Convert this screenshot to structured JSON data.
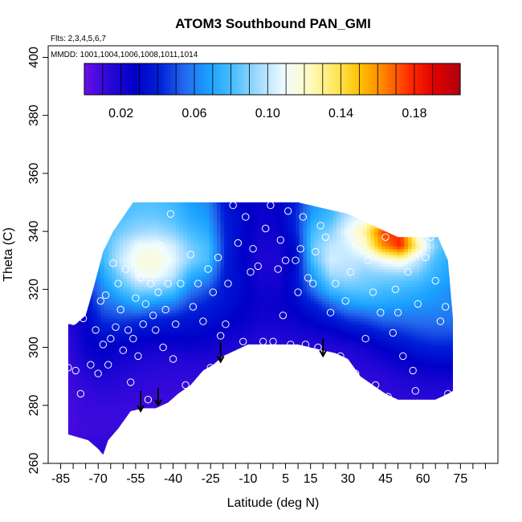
{
  "chart_data": {
    "type": "heatmap",
    "title": "ATOM3 Southbound PAN_GMI",
    "notes": [
      "Flts: 2,3,4,5,6,7",
      "MMDD: 1001,1004,1006,1008,1011,1014"
    ],
    "xlabel": "Latitude (deg N)",
    "ylabel": "Theta (C)",
    "xlim": [
      -90,
      90
    ],
    "ylim": [
      260,
      404
    ],
    "x_ticks": [
      -85,
      -80,
      -75,
      -70,
      -65,
      -60,
      -55,
      -50,
      -45,
      -40,
      -35,
      -30,
      -25,
      -20,
      -15,
      -10,
      -5,
      0,
      5,
      10,
      15,
      20,
      25,
      30,
      35,
      40,
      45,
      50,
      55,
      60,
      65,
      70,
      75,
      80,
      85
    ],
    "x_tick_labels": [
      "-85",
      "-70",
      "-55",
      "-40",
      "-25",
      "-10",
      "5",
      "15",
      "30",
      "45",
      "60",
      "75"
    ],
    "x_tick_label_values": [
      -85,
      -70,
      -55,
      -40,
      -25,
      -10,
      5,
      15,
      30,
      45,
      60,
      75
    ],
    "y_ticks": [
      260,
      280,
      300,
      320,
      340,
      360,
      380,
      400
    ],
    "y_tick_labels": [
      "260",
      "280",
      "300",
      "320",
      "340",
      "360",
      "380",
      "400"
    ],
    "colorbar": {
      "range": [
        0.0,
        0.205
      ],
      "tick_values": [
        0.02,
        0.06,
        0.1,
        0.14,
        0.18
      ],
      "tick_labels": [
        "0.02",
        "0.06",
        "0.10",
        "0.14",
        "0.18"
      ],
      "colors": [
        "#6a0fe6",
        "#2a08d8",
        "#0000c8",
        "#0020d8",
        "#2468ec",
        "#1aa2ff",
        "#4ec0ff",
        "#a8dcff",
        "#f0fcff",
        "#fffac0",
        "#ffe860",
        "#ffc000",
        "#ff8000",
        "#ff2a00",
        "#e00000",
        "#b00010"
      ]
    },
    "field_grid": {
      "lats": [
        -82,
        -75,
        -68,
        -61,
        -54,
        -47,
        -40,
        -33,
        -26,
        -19,
        -12,
        -5,
        2,
        9,
        16,
        23,
        30,
        37,
        44,
        51,
        58,
        65,
        72
      ],
      "thetas": [
        265,
        270,
        275,
        280,
        285,
        290,
        295,
        300,
        305,
        310,
        315,
        320,
        325,
        330,
        335,
        340,
        345,
        350
      ],
      "values": [
        [
          0.01,
          0.008,
          0.007,
          0.008,
          0.009,
          0.01,
          0.01,
          0.012,
          0.014,
          0.016,
          0.015,
          0.016,
          0.018,
          0.02,
          0.022,
          0.024,
          0.025,
          0.026
        ],
        [
          0.012,
          0.01,
          0.01,
          0.011,
          0.012,
          0.015,
          0.02,
          0.024,
          0.026,
          0.028,
          0.034,
          0.04,
          0.046,
          0.052,
          0.055,
          0.056,
          0.056,
          0.057
        ],
        [
          0.014,
          0.011,
          0.01,
          0.011,
          0.014,
          0.019,
          0.024,
          0.028,
          0.035,
          0.045,
          0.054,
          0.062,
          0.07,
          0.078,
          0.08,
          0.078,
          0.076,
          0.075
        ],
        [
          0.014,
          0.011,
          0.01,
          0.011,
          0.013,
          0.016,
          0.02,
          0.026,
          0.036,
          0.048,
          0.062,
          0.078,
          0.09,
          0.102,
          0.096,
          0.088,
          0.082,
          0.08
        ],
        [
          0.014,
          0.011,
          0.01,
          0.01,
          0.012,
          0.014,
          0.018,
          0.024,
          0.032,
          0.046,
          0.07,
          0.09,
          0.11,
          0.116,
          0.11,
          0.094,
          0.086,
          0.082
        ],
        [
          0.014,
          0.011,
          0.01,
          0.01,
          0.011,
          0.013,
          0.016,
          0.022,
          0.03,
          0.042,
          0.064,
          0.09,
          0.112,
          0.118,
          0.112,
          0.096,
          0.086,
          0.082
        ],
        [
          0.014,
          0.012,
          0.011,
          0.01,
          0.011,
          0.013,
          0.016,
          0.022,
          0.03,
          0.04,
          0.06,
          0.082,
          0.1,
          0.108,
          0.104,
          0.09,
          0.082,
          0.078
        ],
        [
          0.016,
          0.014,
          0.012,
          0.011,
          0.011,
          0.013,
          0.016,
          0.024,
          0.03,
          0.036,
          0.046,
          0.06,
          0.075,
          0.09,
          0.088,
          0.08,
          0.072,
          0.068
        ],
        [
          0.018,
          0.016,
          0.014,
          0.012,
          0.012,
          0.013,
          0.016,
          0.022,
          0.028,
          0.034,
          0.04,
          0.05,
          0.065,
          0.08,
          0.08,
          0.072,
          0.066,
          0.062
        ],
        [
          0.018,
          0.016,
          0.014,
          0.013,
          0.012,
          0.013,
          0.015,
          0.018,
          0.024,
          0.03,
          0.034,
          0.036,
          0.038,
          0.04,
          0.042,
          0.04,
          0.038,
          0.036
        ],
        [
          0.018,
          0.016,
          0.014,
          0.013,
          0.012,
          0.012,
          0.013,
          0.016,
          0.022,
          0.026,
          0.028,
          0.03,
          0.03,
          0.028,
          0.028,
          0.03,
          0.03,
          0.028
        ],
        [
          0.018,
          0.016,
          0.014,
          0.013,
          0.012,
          0.012,
          0.013,
          0.015,
          0.018,
          0.022,
          0.024,
          0.022,
          0.02,
          0.018,
          0.02,
          0.022,
          0.024,
          0.024
        ],
        [
          0.018,
          0.016,
          0.014,
          0.013,
          0.012,
          0.012,
          0.013,
          0.015,
          0.018,
          0.022,
          0.024,
          0.022,
          0.02,
          0.018,
          0.02,
          0.024,
          0.026,
          0.026
        ],
        [
          0.018,
          0.016,
          0.014,
          0.013,
          0.012,
          0.012,
          0.013,
          0.015,
          0.02,
          0.024,
          0.03,
          0.034,
          0.034,
          0.03,
          0.032,
          0.04,
          0.042,
          0.04
        ],
        [
          0.018,
          0.016,
          0.014,
          0.013,
          0.012,
          0.012,
          0.013,
          0.015,
          0.022,
          0.03,
          0.04,
          0.056,
          0.068,
          0.08,
          0.086,
          0.08,
          0.07,
          0.064
        ],
        [
          0.018,
          0.016,
          0.014,
          0.013,
          0.012,
          0.012,
          0.013,
          0.016,
          0.024,
          0.036,
          0.054,
          0.078,
          0.094,
          0.104,
          0.1,
          0.09,
          0.08,
          0.074
        ],
        [
          0.018,
          0.016,
          0.014,
          0.013,
          0.012,
          0.012,
          0.014,
          0.018,
          0.03,
          0.046,
          0.066,
          0.084,
          0.096,
          0.1,
          0.104,
          0.11,
          0.1,
          0.09
        ],
        [
          0.018,
          0.016,
          0.014,
          0.013,
          0.012,
          0.012,
          0.016,
          0.022,
          0.034,
          0.05,
          0.07,
          0.084,
          0.09,
          0.1,
          0.12,
          0.13,
          0.11,
          0.1
        ],
        [
          0.018,
          0.016,
          0.014,
          0.013,
          0.012,
          0.014,
          0.02,
          0.028,
          0.04,
          0.056,
          0.07,
          0.08,
          0.09,
          0.11,
          0.16,
          0.175,
          0.13,
          0.11
        ],
        [
          0.018,
          0.016,
          0.014,
          0.013,
          0.014,
          0.018,
          0.024,
          0.032,
          0.044,
          0.056,
          0.068,
          0.078,
          0.09,
          0.118,
          0.18,
          0.178,
          0.12,
          0.1
        ],
        [
          0.018,
          0.016,
          0.014,
          0.013,
          0.016,
          0.02,
          0.028,
          0.038,
          0.048,
          0.058,
          0.066,
          0.074,
          0.086,
          0.1,
          0.128,
          0.11,
          0.095,
          0.09
        ],
        [
          0.018,
          0.016,
          0.014,
          0.013,
          0.016,
          0.022,
          0.03,
          0.04,
          0.05,
          0.058,
          0.064,
          0.068,
          0.074,
          0.08,
          0.09,
          0.085,
          0.082,
          0.08
        ],
        [
          0.018,
          0.016,
          0.014,
          0.013,
          0.016,
          0.022,
          0.03,
          0.04,
          0.05,
          0.058,
          0.062,
          0.064,
          0.068,
          0.07,
          0.072,
          0.072,
          0.07,
          0.068
        ]
      ]
    },
    "domain": {
      "lower_boundary": [
        [
          -82,
          270
        ],
        [
          -78,
          269
        ],
        [
          -74,
          268
        ],
        [
          -70,
          265
        ],
        [
          -68,
          263
        ],
        [
          -66,
          268
        ],
        [
          -62,
          272
        ],
        [
          -57,
          278
        ],
        [
          -52,
          279
        ],
        [
          -47,
          279
        ],
        [
          -42,
          281
        ],
        [
          -38,
          284
        ],
        [
          -33,
          287
        ],
        [
          -28,
          292
        ],
        [
          -24,
          294
        ],
        [
          -20,
          297
        ],
        [
          -15,
          299
        ],
        [
          -10,
          301
        ],
        [
          -5,
          301
        ],
        [
          0,
          301
        ],
        [
          5,
          301
        ],
        [
          10,
          301
        ],
        [
          15,
          300
        ],
        [
          20,
          299
        ],
        [
          25,
          298
        ],
        [
          30,
          296
        ],
        [
          35,
          290
        ],
        [
          40,
          287
        ],
        [
          45,
          284
        ],
        [
          50,
          282
        ],
        [
          55,
          282
        ],
        [
          60,
          282
        ],
        [
          65,
          282
        ],
        [
          70,
          284
        ],
        [
          72,
          285
        ]
      ],
      "upper_boundary": [
        [
          -82,
          308
        ],
        [
          -79,
          308
        ],
        [
          -75,
          311
        ],
        [
          -72,
          320
        ],
        [
          -68,
          333
        ],
        [
          -64,
          340
        ],
        [
          -60,
          345
        ],
        [
          -56,
          350
        ],
        [
          -50,
          350
        ],
        [
          -40,
          350
        ],
        [
          -30,
          350
        ],
        [
          -20,
          350
        ],
        [
          -10,
          350
        ],
        [
          0,
          350
        ],
        [
          10,
          350
        ],
        [
          20,
          348
        ],
        [
          30,
          346
        ],
        [
          40,
          342
        ],
        [
          45,
          340
        ],
        [
          50,
          338
        ],
        [
          55,
          338
        ],
        [
          60,
          338
        ],
        [
          66,
          338
        ],
        [
          70,
          330
        ],
        [
          72,
          310
        ],
        [
          72,
          285
        ]
      ]
    },
    "observations": [
      [
        -82,
        293
      ],
      [
        -80,
        309
      ],
      [
        -79,
        292
      ],
      [
        -77,
        284
      ],
      [
        -76,
        310
      ],
      [
        -73,
        294
      ],
      [
        -71,
        306
      ],
      [
        -70,
        291
      ],
      [
        -69,
        316
      ],
      [
        -68,
        301
      ],
      [
        -67,
        318
      ],
      [
        -66,
        294
      ],
      [
        -65,
        303
      ],
      [
        -64,
        329
      ],
      [
        -63,
        307
      ],
      [
        -62,
        322
      ],
      [
        -61,
        313
      ],
      [
        -60,
        299
      ],
      [
        -59,
        327
      ],
      [
        -58,
        306
      ],
      [
        -57,
        288
      ],
      [
        -56,
        303
      ],
      [
        -55,
        317
      ],
      [
        -54,
        297
      ],
      [
        -53,
        324
      ],
      [
        -52,
        308
      ],
      [
        -51,
        315
      ],
      [
        -50,
        282
      ],
      [
        -49,
        322
      ],
      [
        -48,
        311
      ],
      [
        -47,
        306
      ],
      [
        -46,
        319
      ],
      [
        -45,
        335
      ],
      [
        -44,
        300
      ],
      [
        -43,
        313
      ],
      [
        -42,
        322
      ],
      [
        -41,
        346
      ],
      [
        -40,
        296
      ],
      [
        -39,
        308
      ],
      [
        -37,
        322
      ],
      [
        -35,
        287
      ],
      [
        -33,
        332
      ],
      [
        -32,
        314
      ],
      [
        -30,
        322
      ],
      [
        -28,
        309
      ],
      [
        -26,
        327
      ],
      [
        -25,
        293
      ],
      [
        -24,
        319
      ],
      [
        -22,
        331
      ],
      [
        -21,
        304
      ],
      [
        -19,
        308
      ],
      [
        -18,
        322
      ],
      [
        -16,
        349
      ],
      [
        -14,
        336
      ],
      [
        -12,
        302
      ],
      [
        -11,
        345
      ],
      [
        -9,
        326
      ],
      [
        -8,
        334
      ],
      [
        -6,
        328
      ],
      [
        -4,
        302
      ],
      [
        -3,
        341
      ],
      [
        -1,
        349
      ],
      [
        0,
        302
      ],
      [
        2,
        327
      ],
      [
        3,
        337
      ],
      [
        4,
        311
      ],
      [
        5,
        330
      ],
      [
        6,
        347
      ],
      [
        7,
        301
      ],
      [
        9,
        330
      ],
      [
        10,
        319
      ],
      [
        11,
        334
      ],
      [
        12,
        345
      ],
      [
        13,
        301
      ],
      [
        14,
        324
      ],
      [
        16,
        322
      ],
      [
        17,
        333
      ],
      [
        18,
        300
      ],
      [
        19,
        342
      ],
      [
        21,
        338
      ],
      [
        23,
        312
      ],
      [
        25,
        322
      ],
      [
        27,
        297
      ],
      [
        29,
        316
      ],
      [
        31,
        326
      ],
      [
        33,
        291
      ],
      [
        35,
        338
      ],
      [
        37,
        303
      ],
      [
        38,
        330
      ],
      [
        40,
        319
      ],
      [
        41,
        287
      ],
      [
        43,
        312
      ],
      [
        45,
        338
      ],
      [
        46,
        283
      ],
      [
        48,
        305
      ],
      [
        49,
        320
      ],
      [
        50,
        312
      ],
      [
        52,
        297
      ],
      [
        54,
        326
      ],
      [
        56,
        292
      ],
      [
        57,
        285
      ],
      [
        58,
        315
      ],
      [
        61,
        331
      ],
      [
        63,
        338
      ],
      [
        65,
        323
      ],
      [
        67,
        309
      ],
      [
        69,
        314
      ],
      [
        70,
        284
      ]
    ],
    "arrows": [
      {
        "x": -53,
        "y_from": 285,
        "y_to": 278
      },
      {
        "x": -46,
        "y_from": 286,
        "y_to": 280
      },
      {
        "x": -21,
        "y_from": 302,
        "y_to": 295
      },
      {
        "x": 20,
        "y_from": 303,
        "y_to": 297
      }
    ],
    "grid": false,
    "legend": "colorbar inside top of plot"
  }
}
